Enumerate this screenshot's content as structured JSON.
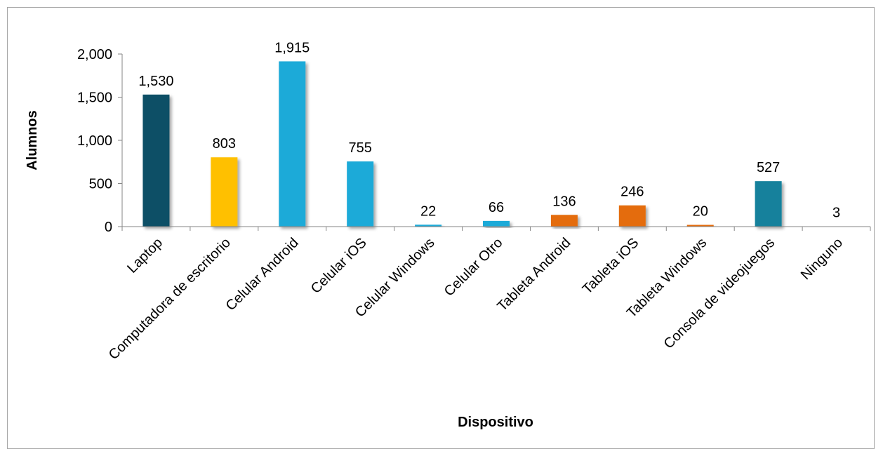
{
  "chart_data": {
    "type": "bar",
    "categories": [
      "Laptop",
      "Computadora de escritorio",
      "Celular Android",
      "Celular iOS",
      "Celular Windows",
      "Celular Otro",
      "Tableta Android",
      "Tableta iOS",
      "Tableta Windows",
      "Consola de videojuegos",
      "Ninguno"
    ],
    "values": [
      1530,
      803,
      1915,
      755,
      22,
      66,
      136,
      246,
      20,
      527,
      3
    ],
    "data_labels": [
      "1,530",
      "803",
      "1,915",
      "755",
      "22",
      "66",
      "136",
      "246",
      "20",
      "527",
      "3"
    ],
    "colors": [
      "#0a4f66",
      "#ffc000",
      "#1faad8",
      "#1faad8",
      "#1faad8",
      "#1faad8",
      "#e46c0a",
      "#e46c0a",
      "#e46c0a",
      "#14819c",
      "#14819c"
    ],
    "title": "",
    "xlabel": "Dispositivo",
    "ylabel": "Alumnos",
    "ylim": [
      0,
      2000
    ],
    "yticks": [
      0,
      500,
      1000,
      1500,
      2000
    ],
    "ytick_labels": [
      "0",
      "500",
      "1,000",
      "1,500",
      "2,000"
    ],
    "grid": false,
    "legend": "none"
  }
}
